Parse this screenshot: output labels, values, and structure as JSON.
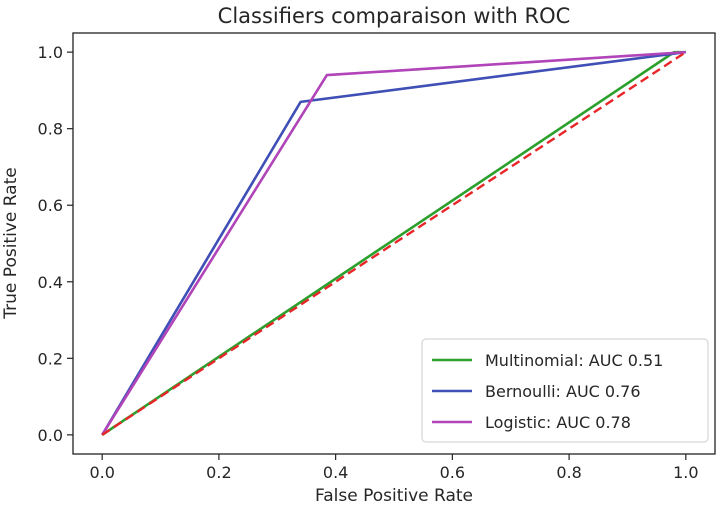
{
  "chart_data": {
    "type": "line",
    "title": "Classifiers comparaison with ROC",
    "xlabel": "False Positive Rate",
    "ylabel": "True Positive Rate",
    "xlim": [
      -0.05,
      1.05
    ],
    "ylim": [
      -0.05,
      1.05
    ],
    "x_ticks": [
      "0.0",
      "0.2",
      "0.4",
      "0.6",
      "0.8",
      "1.0"
    ],
    "y_ticks": [
      "0.0",
      "0.2",
      "0.4",
      "0.6",
      "0.8",
      "1.0"
    ],
    "grid": false,
    "legend_position": "lower-right",
    "series": [
      {
        "name": "Multinomial: AUC 0.51",
        "color": "#2ca02c",
        "x": [
          0.0,
          0.98,
          1.0
        ],
        "y": [
          0.0,
          1.0,
          1.0
        ]
      },
      {
        "name": "Bernoulli: AUC 0.76",
        "color": "#3f4fb5",
        "x": [
          0.0,
          0.34,
          1.0
        ],
        "y": [
          0.0,
          0.87,
          1.0
        ]
      },
      {
        "name": "Logistic: AUC 0.78",
        "color": "#b044b8",
        "x": [
          0.0,
          0.385,
          1.0
        ],
        "y": [
          0.0,
          0.94,
          1.0
        ]
      }
    ],
    "reference_line": {
      "color": "#e8262a",
      "style": "dashed",
      "x": [
        0.0,
        1.0
      ],
      "y": [
        0.0,
        1.0
      ]
    }
  }
}
